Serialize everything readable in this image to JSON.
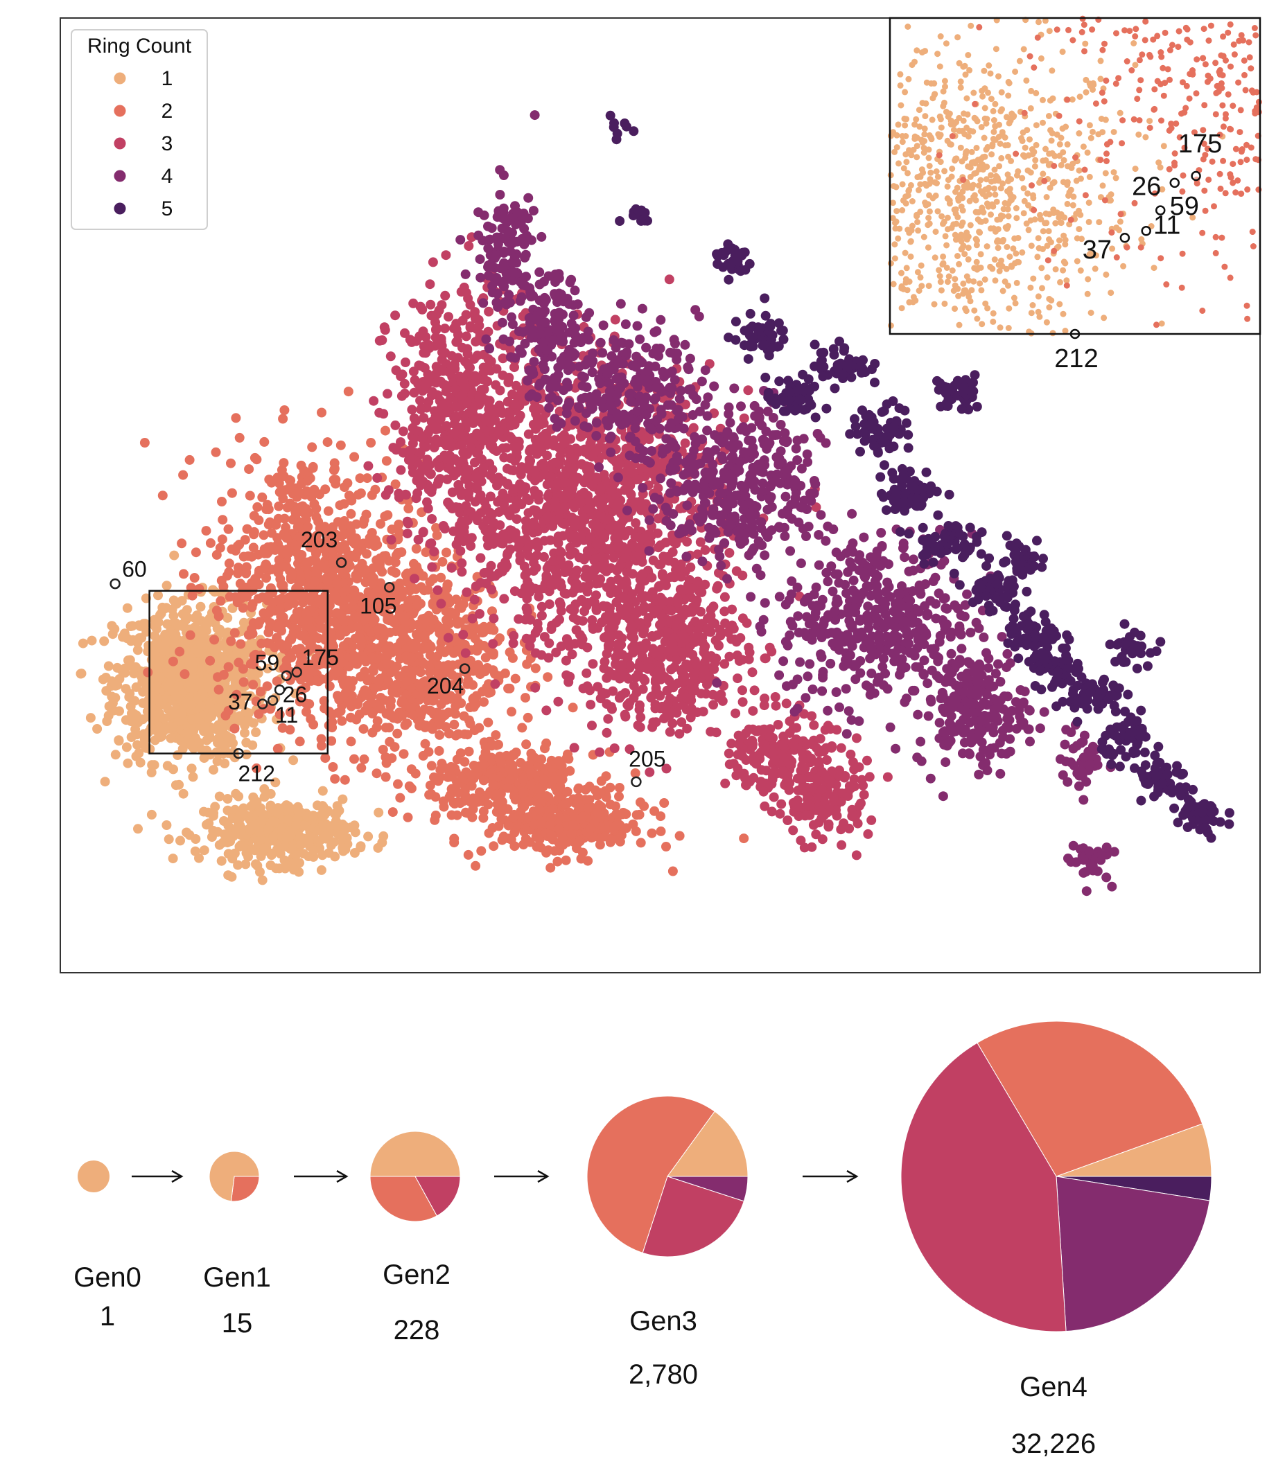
{
  "colors": {
    "ring_1": "#EEAE7B",
    "ring_2": "#E5705D",
    "ring_3": "#C14063",
    "ring_4": "#842C6E",
    "ring_5": "#4A1E5E"
  },
  "chart_data": [
    {
      "type": "scatter",
      "legend": {
        "title": "Ring Count",
        "placement": "top-left",
        "entries": [
          "1",
          "2",
          "3",
          "4",
          "5"
        ]
      },
      "clusters": [
        {
          "ring": 1,
          "x": 1.9,
          "y": 4.1,
          "sx": 0.55,
          "sy": 0.55,
          "n": 900
        },
        {
          "ring": 1,
          "x": 3.2,
          "y": 2.0,
          "sx": 0.55,
          "sy": 0.22,
          "n": 380
        },
        {
          "ring": 2,
          "x": 3.6,
          "y": 5.6,
          "sx": 0.7,
          "sy": 0.9,
          "n": 700
        },
        {
          "ring": 2,
          "x": 5.0,
          "y": 4.5,
          "sx": 0.75,
          "sy": 0.75,
          "n": 800
        },
        {
          "ring": 2,
          "x": 6.6,
          "y": 2.7,
          "sx": 0.6,
          "sy": 0.2,
          "n": 300
        },
        {
          "ring": 2,
          "x": 7.4,
          "y": 2.1,
          "sx": 0.6,
          "sy": 0.22,
          "n": 300
        },
        {
          "ring": 3,
          "x": 5.9,
          "y": 7.8,
          "sx": 0.55,
          "sy": 0.95,
          "n": 600
        },
        {
          "ring": 3,
          "x": 7.8,
          "y": 6.5,
          "sx": 0.9,
          "sy": 1.0,
          "n": 1100
        },
        {
          "ring": 3,
          "x": 8.8,
          "y": 4.6,
          "sx": 0.6,
          "sy": 0.6,
          "n": 450
        },
        {
          "ring": 3,
          "x": 10.5,
          "y": 3.1,
          "sx": 0.35,
          "sy": 0.3,
          "n": 160
        },
        {
          "ring": 3,
          "x": 11.1,
          "y": 2.5,
          "sx": 0.35,
          "sy": 0.3,
          "n": 160
        },
        {
          "ring": 4,
          "x": 6.5,
          "y": 10.2,
          "sx": 0.22,
          "sy": 0.45,
          "n": 120
        },
        {
          "ring": 4,
          "x": 7.1,
          "y": 9.0,
          "sx": 0.3,
          "sy": 0.45,
          "n": 160
        },
        {
          "ring": 4,
          "x": 8.3,
          "y": 8.3,
          "sx": 0.5,
          "sy": 0.45,
          "n": 220
        },
        {
          "ring": 4,
          "x": 9.9,
          "y": 6.9,
          "sx": 0.6,
          "sy": 0.55,
          "n": 380
        },
        {
          "ring": 4,
          "x": 11.9,
          "y": 5.0,
          "sx": 0.7,
          "sy": 0.6,
          "n": 420
        },
        {
          "ring": 4,
          "x": 13.3,
          "y": 3.7,
          "sx": 0.4,
          "sy": 0.4,
          "n": 200
        },
        {
          "ring": 4,
          "x": 14.9,
          "y": 3.0,
          "sx": 0.15,
          "sy": 0.22,
          "n": 40
        },
        {
          "ring": 4,
          "x": 15.0,
          "y": 1.6,
          "sx": 0.15,
          "sy": 0.15,
          "n": 40
        },
        {
          "ring": 5,
          "x": 8.1,
          "y": 12.0,
          "sx": 0.08,
          "sy": 0.1,
          "n": 8
        },
        {
          "ring": 5,
          "x": 8.4,
          "y": 10.7,
          "sx": 0.12,
          "sy": 0.08,
          "n": 12
        },
        {
          "ring": 5,
          "x": 9.8,
          "y": 10.1,
          "sx": 0.15,
          "sy": 0.13,
          "n": 30
        },
        {
          "ring": 5,
          "x": 10.2,
          "y": 9.0,
          "sx": 0.2,
          "sy": 0.15,
          "n": 50
        },
        {
          "ring": 5,
          "x": 10.7,
          "y": 8.1,
          "sx": 0.2,
          "sy": 0.15,
          "n": 50
        },
        {
          "ring": 5,
          "x": 11.4,
          "y": 8.6,
          "sx": 0.2,
          "sy": 0.15,
          "n": 50
        },
        {
          "ring": 5,
          "x": 12.0,
          "y": 7.7,
          "sx": 0.22,
          "sy": 0.17,
          "n": 60
        },
        {
          "ring": 5,
          "x": 12.4,
          "y": 6.8,
          "sx": 0.22,
          "sy": 0.15,
          "n": 60
        },
        {
          "ring": 5,
          "x": 12.9,
          "y": 6.1,
          "sx": 0.22,
          "sy": 0.15,
          "n": 60
        },
        {
          "ring": 5,
          "x": 13.6,
          "y": 5.4,
          "sx": 0.2,
          "sy": 0.15,
          "n": 50
        },
        {
          "ring": 5,
          "x": 14.2,
          "y": 4.8,
          "sx": 0.2,
          "sy": 0.15,
          "n": 50
        },
        {
          "ring": 5,
          "x": 14.5,
          "y": 4.3,
          "sx": 0.2,
          "sy": 0.15,
          "n": 50
        },
        {
          "ring": 5,
          "x": 15.1,
          "y": 3.9,
          "sx": 0.2,
          "sy": 0.15,
          "n": 50
        },
        {
          "ring": 5,
          "x": 15.6,
          "y": 3.3,
          "sx": 0.2,
          "sy": 0.15,
          "n": 50
        },
        {
          "ring": 5,
          "x": 16.1,
          "y": 2.7,
          "sx": 0.2,
          "sy": 0.15,
          "n": 50
        },
        {
          "ring": 5,
          "x": 16.6,
          "y": 2.2,
          "sx": 0.2,
          "sy": 0.15,
          "n": 50
        },
        {
          "ring": 5,
          "x": 13.1,
          "y": 8.2,
          "sx": 0.18,
          "sy": 0.13,
          "n": 40
        },
        {
          "ring": 5,
          "x": 14.0,
          "y": 5.9,
          "sx": 0.18,
          "sy": 0.13,
          "n": 40
        },
        {
          "ring": 5,
          "x": 15.6,
          "y": 4.6,
          "sx": 0.15,
          "sy": 0.13,
          "n": 30
        }
      ],
      "highlighted": [
        {
          "label": "60",
          "x": 0.8,
          "y": 5.5
        },
        {
          "label": "203",
          "x": 4.1,
          "y": 5.8
        },
        {
          "label": "105",
          "x": 4.8,
          "y": 5.45
        },
        {
          "label": "204",
          "x": 5.9,
          "y": 4.3
        },
        {
          "label": "205",
          "x": 8.4,
          "y": 2.7
        },
        {
          "label": "59",
          "x": 3.3,
          "y": 4.2
        },
        {
          "label": "175",
          "x": 3.45,
          "y": 4.25
        },
        {
          "label": "26",
          "x": 3.2,
          "y": 4.0
        },
        {
          "label": "37",
          "x": 2.95,
          "y": 3.8
        },
        {
          "label": "11",
          "x": 3.1,
          "y": 3.85
        },
        {
          "label": "212",
          "x": 2.6,
          "y": 3.1
        }
      ],
      "inset": {
        "xlim": [
          1.3,
          3.9
        ],
        "ylim": [
          3.1,
          5.4
        ],
        "labels": [
          "175",
          "26",
          "59",
          "11",
          "37",
          "212"
        ]
      }
    },
    {
      "type": "pie",
      "slice_order": [
        "5",
        "4",
        "3",
        "2",
        "1"
      ],
      "generations": [
        {
          "label": "Gen0",
          "count": "1",
          "shares": [
            0,
            0,
            0,
            0,
            1.0
          ]
        },
        {
          "label": "Gen1",
          "count": "15",
          "shares": [
            0,
            0,
            0,
            0.27,
            0.73
          ]
        },
        {
          "label": "Gen2",
          "count": "228",
          "shares": [
            0,
            0,
            0.17,
            0.33,
            0.5
          ]
        },
        {
          "label": "Gen3",
          "count": "2,780",
          "shares": [
            0,
            0.05,
            0.25,
            0.55,
            0.15
          ]
        },
        {
          "label": "Gen4",
          "count": "32,226",
          "shares": [
            0.025,
            0.215,
            0.425,
            0.28,
            0.055
          ]
        }
      ]
    }
  ]
}
